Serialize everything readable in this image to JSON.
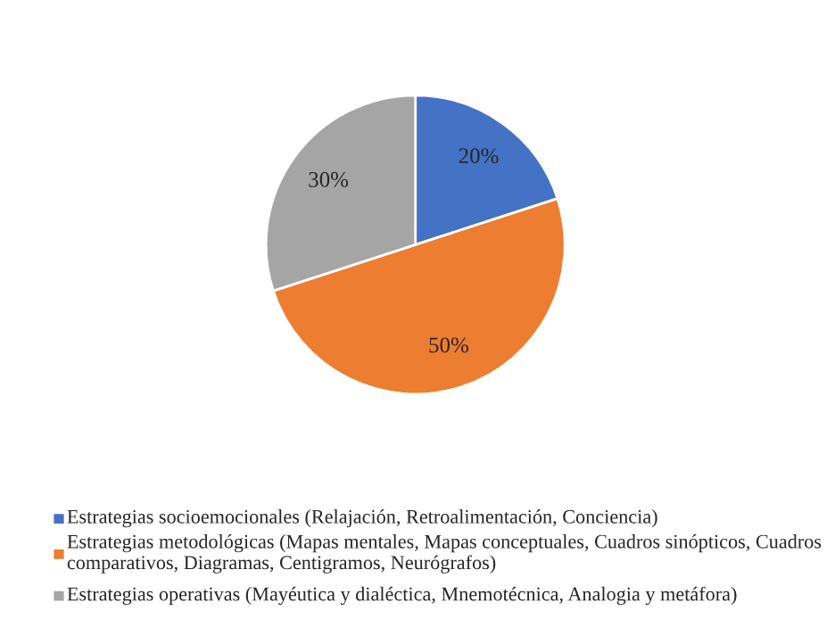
{
  "chart_data": {
    "type": "pie",
    "categories": [
      "Estrategias socioemocionales (Relajación, Retroalimentación, Conciencia)",
      "Estrategias metodológicas (Mapas mentales, Mapas conceptuales, Cuadros sinópticos, Cuadros comparativos, Diagramas, Centigramos, Neurógrafos)",
      "Estrategias operativas (Mayéutica y dialéctica, Mnemotécnica, Analogia y metáfora)"
    ],
    "values": [
      20,
      50,
      30
    ],
    "colors": [
      "#4472c4",
      "#ed7d31",
      "#a5a5a5"
    ],
    "value_labels": [
      "20%",
      "50%",
      "30%"
    ],
    "legend": "bottom"
  }
}
